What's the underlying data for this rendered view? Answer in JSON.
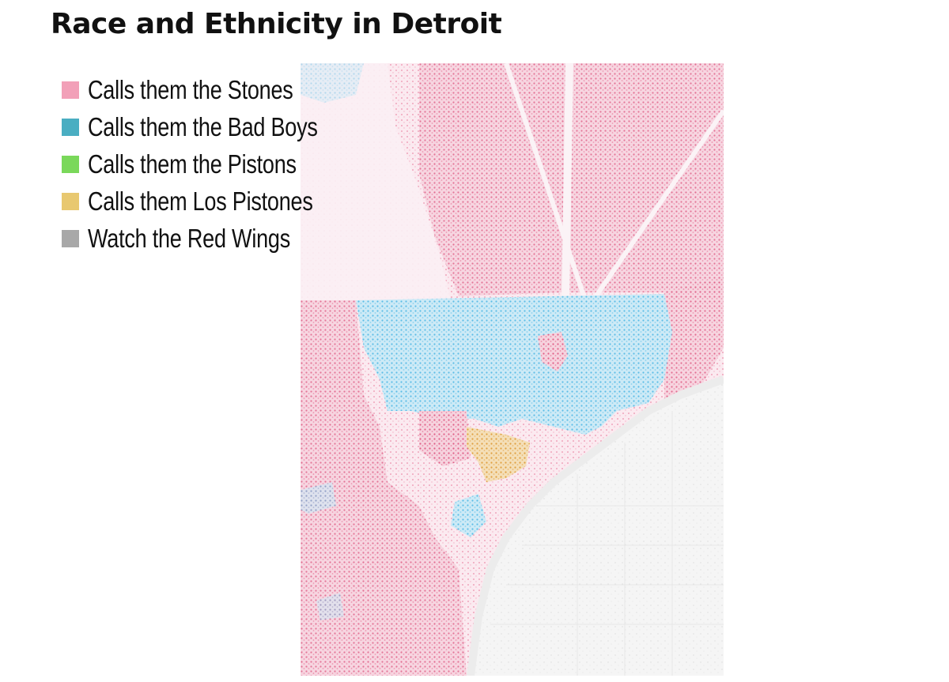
{
  "title": "Race and Ethnicity in Detroit",
  "legend": {
    "items": [
      {
        "label": "Calls them the Stones",
        "color": "#f2a0b8"
      },
      {
        "label": "Calls them the Bad Boys",
        "color": "#4aaec2"
      },
      {
        "label": "Calls them the Pistons",
        "color": "#7ad85a"
      },
      {
        "label": "Calls them Los Pistones",
        "color": "#e8c870"
      },
      {
        "label": "Watch the Red Wings",
        "color": "#a8a8a8"
      }
    ]
  },
  "map": {
    "region_colors": {
      "pink": "#e87a9a",
      "blue": "#6ec4e6",
      "orange": "#e0a850",
      "gray": "#d8d8d8"
    }
  }
}
